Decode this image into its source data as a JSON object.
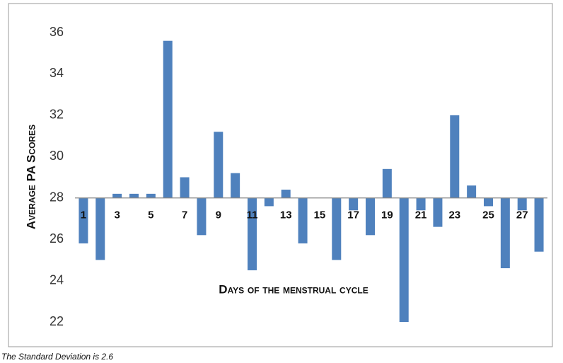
{
  "chart_data": {
    "type": "bar",
    "ylabel": "Average PA Scores",
    "xlabel": "Days of the menstrual cycle",
    "note": "The Standard Deviation is 2.6",
    "categories": [
      "1",
      null,
      "3",
      null,
      "5",
      null,
      "7",
      null,
      "9",
      null,
      "11",
      null,
      "13",
      null,
      "15",
      null,
      "17",
      null,
      "19",
      null,
      "21",
      null,
      "23",
      null,
      "25",
      null,
      "27",
      null
    ],
    "values": [
      25.8,
      25.0,
      28.2,
      28.2,
      28.2,
      35.6,
      29.0,
      26.2,
      31.2,
      29.2,
      24.5,
      27.6,
      28.4,
      25.8,
      28,
      25.0,
      27.4,
      26.2,
      29.4,
      22.0,
      27.4,
      26.6,
      32.0,
      28.6,
      27.6,
      24.6,
      27.4,
      25.4
    ],
    "color": "#4f81bd",
    "x_axis_at": 28,
    "ylim": [
      22,
      36
    ],
    "yticks": [
      22,
      24,
      26,
      28,
      30,
      32,
      34,
      36
    ],
    "grid": false
  }
}
